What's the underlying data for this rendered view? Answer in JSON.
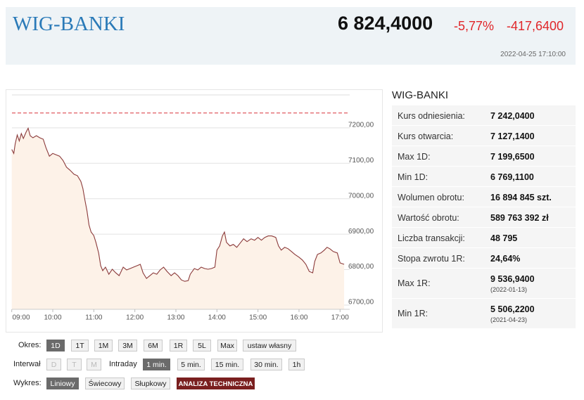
{
  "header": {
    "title": "WIG-BANKI",
    "price": "6 824,4000",
    "change_pct": "-5,77%",
    "change": "-417,6400",
    "timestamp": "2022-04-25 17:10:00"
  },
  "stats": {
    "title": "WIG-BANKI",
    "rows": [
      {
        "label": "Kurs odniesienia:",
        "value": "7 242,0400"
      },
      {
        "label": "Kurs otwarcia:",
        "value": "7 127,1400"
      },
      {
        "label": "Max 1D:",
        "value": "7 199,6500"
      },
      {
        "label": "Min 1D:",
        "value": "6 769,1100"
      },
      {
        "label": "Wolumen obrotu:",
        "value": "16 894 845 szt."
      },
      {
        "label": "Wartość obrotu:",
        "value": "589 763 392 zł"
      },
      {
        "label": "Liczba transakcji:",
        "value": "48 795"
      },
      {
        "label": "Stopa zwrotu 1R:",
        "value": "24,64%"
      },
      {
        "label": "Max 1R:",
        "value": "9 536,9400",
        "date": "(2022-01-13)"
      },
      {
        "label": "Min 1R:",
        "value": "5 506,2200",
        "date": "(2021-04-23)"
      }
    ]
  },
  "controls": {
    "period": {
      "label": "Okres:",
      "options": [
        "1D",
        "1T",
        "1M",
        "3M",
        "6M",
        "1R",
        "5L",
        "Max",
        "ustaw własny"
      ]
    },
    "interval": {
      "label": "Interwał",
      "options": [
        "D",
        "T",
        "M"
      ],
      "intraday_label": "Intraday",
      "intraday_options": [
        "1 min.",
        "5 min.",
        "15 min.",
        "30 min.",
        "1h"
      ]
    },
    "chart_type": {
      "label": "Wykres:",
      "options": [
        "Liniowy",
        "Świecowy",
        "Słupkowy"
      ],
      "analysis": "ANALIZA TECHNICZNA"
    }
  },
  "chart_data": {
    "type": "line",
    "color": "#8b3a3a",
    "fill": "#fdf2e8",
    "reference": 7242.04,
    "reference_color": "#d9343a",
    "x": [
      "09:00",
      "09:03",
      "09:05",
      "09:08",
      "09:11",
      "09:14",
      "09:17",
      "09:21",
      "09:24",
      "09:27",
      "09:31",
      "09:36",
      "09:41",
      "09:46",
      "09:50",
      "09:55",
      "10:00",
      "10:05",
      "10:10",
      "10:15",
      "10:20",
      "10:25",
      "10:31",
      "10:36",
      "10:41",
      "10:44",
      "10:47",
      "10:50",
      "10:53",
      "10:56",
      "11:00",
      "11:03",
      "11:07",
      "11:10",
      "11:13",
      "11:17",
      "11:22",
      "11:27",
      "11:32",
      "11:37",
      "11:43",
      "11:48",
      "11:53",
      "11:58",
      "12:03",
      "12:08",
      "12:12",
      "12:17",
      "12:22",
      "12:27",
      "12:32",
      "12:37",
      "12:42",
      "12:47",
      "12:53",
      "12:58",
      "13:03",
      "13:08",
      "13:13",
      "13:18",
      "13:21",
      "13:27",
      "13:32",
      "13:37",
      "13:42",
      "13:47",
      "13:52",
      "13:57",
      "14:00",
      "14:04",
      "14:08",
      "14:11",
      "14:14",
      "14:19",
      "14:24",
      "14:29",
      "14:34",
      "14:39",
      "14:44",
      "14:50",
      "14:55",
      "15:00",
      "15:05",
      "15:10",
      "15:15",
      "15:20",
      "15:26",
      "15:30",
      "15:34",
      "15:39",
      "15:44",
      "15:49",
      "15:54",
      "16:00",
      "16:05",
      "16:10",
      "16:15",
      "16:20",
      "16:23",
      "16:27",
      "16:32",
      "16:37",
      "16:41",
      "16:45",
      "16:50",
      "16:56",
      "17:00",
      "17:06"
    ],
    "values": [
      7139,
      7128,
      7155,
      7180,
      7163,
      7184,
      7170,
      7188,
      7199,
      7178,
      7172,
      7178,
      7172,
      7168,
      7144,
      7120,
      7128,
      7124,
      7120,
      7108,
      7089,
      7081,
      7069,
      7065,
      7049,
      7029,
      6996,
      6966,
      6926,
      6906,
      6896,
      6877,
      6847,
      6811,
      6797,
      6807,
      6787,
      6801,
      6791,
      6783,
      6807,
      6799,
      6803,
      6807,
      6811,
      6815,
      6791,
      6775,
      6783,
      6791,
      6787,
      6799,
      6807,
      6795,
      6783,
      6791,
      6783,
      6771,
      6767,
      6769,
      6787,
      6803,
      6799,
      6807,
      6803,
      6801,
      6803,
      6807,
      6855,
      6867,
      6895,
      6906,
      6877,
      6867,
      6871,
      6863,
      6875,
      6887,
      6879,
      6887,
      6883,
      6891,
      6883,
      6891,
      6895,
      6895,
      6891,
      6867,
      6855,
      6863,
      6859,
      6851,
      6843,
      6835,
      6827,
      6815,
      6795,
      6791,
      6823,
      6843,
      6847,
      6855,
      6863,
      6859,
      6851,
      6847,
      6819,
      6815
    ],
    "xlim": [
      "09:00",
      "17:14"
    ],
    "xticks": [
      "09:00",
      "10:00",
      "11:00",
      "12:00",
      "13:00",
      "14:00",
      "15:00",
      "16:00",
      "17:00"
    ],
    "ylim": [
      6688,
      7293
    ],
    "yticks": [
      {
        "value": 6700,
        "label": "6700,00"
      },
      {
        "value": 6800,
        "label": "6800,00"
      },
      {
        "value": 6900,
        "label": "6900,00"
      },
      {
        "value": 7000,
        "label": "7000,00"
      },
      {
        "value": 7100,
        "label": "7100,00"
      },
      {
        "value": 7200,
        "label": "7200,00"
      }
    ],
    "grid": true
  }
}
